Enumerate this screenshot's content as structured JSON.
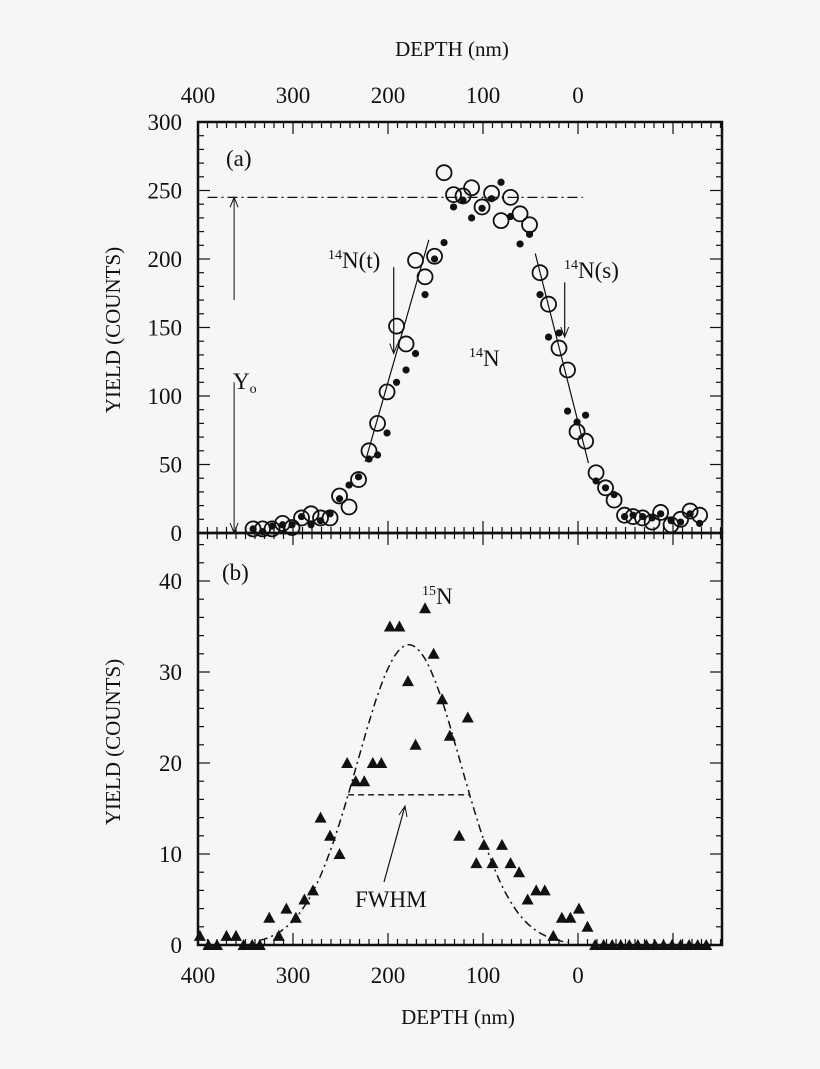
{
  "colors": {
    "ink": "#111111",
    "background": "#f6f6f6"
  },
  "chart_data": [
    {
      "panel_label": "(a)",
      "type": "scatter",
      "xlabel_top": "DEPTH (nm)",
      "ylabel": "YIELD (COUNTS)",
      "xlim": [
        400,
        -152
      ],
      "ylim": [
        0,
        300
      ],
      "xticks": [
        "400",
        "300",
        "200",
        "100",
        "0"
      ],
      "xtick_values": [
        400,
        300,
        200,
        100,
        0
      ],
      "yticks": [
        "0",
        "50",
        "100",
        "150",
        "200",
        "250",
        "300"
      ],
      "ytick_values": [
        0,
        50,
        100,
        150,
        200,
        250,
        300
      ],
      "series": [
        {
          "name": "open circles",
          "marker": "open-circle",
          "x": [
            342,
            332,
            322,
            311,
            301,
            291,
            281,
            271,
            261,
            251,
            241,
            231,
            220,
            211,
            201,
            191,
            181,
            171,
            161,
            151,
            141,
            131,
            121,
            112,
            101,
            91,
            81,
            71,
            61,
            51,
            40,
            31,
            20,
            11,
            1,
            -8,
            -19,
            -29,
            -38,
            -49,
            -58,
            -68,
            -78,
            -87,
            -98,
            -108,
            -118,
            -128
          ],
          "y": [
            3,
            3,
            3,
            7,
            4,
            11,
            14,
            11,
            11,
            27,
            19,
            39,
            60,
            80,
            103,
            151,
            138,
            199,
            187,
            202,
            263,
            247,
            246,
            252,
            238,
            248,
            228,
            245,
            233,
            225,
            190,
            167,
            135,
            119,
            74,
            67,
            44,
            33,
            24,
            13,
            12,
            11,
            8,
            15,
            6,
            10,
            16,
            13
          ]
        },
        {
          "name": "filled dots",
          "marker": "filled-dot",
          "x": [
            342,
            332,
            322,
            311,
            301,
            291,
            281,
            271,
            261,
            251,
            241,
            231,
            220,
            211,
            201,
            191,
            181,
            171,
            161,
            151,
            141,
            131,
            121,
            112,
            101,
            91,
            81,
            71,
            61,
            51,
            40,
            31,
            20,
            11,
            1,
            -8,
            -19,
            -29,
            -38,
            -49,
            -58,
            -68,
            -78,
            -87,
            -98,
            -108,
            -118,
            -128
          ],
          "y": [
            3,
            1,
            5,
            6,
            6,
            12,
            6,
            9,
            14,
            25,
            35,
            41,
            54,
            57,
            73,
            110,
            119,
            131,
            174,
            200,
            212,
            238,
            243,
            230,
            237,
            244,
            256,
            231,
            211,
            218,
            174,
            143,
            146,
            89,
            81,
            86,
            38,
            33,
            28,
            12,
            13,
            12,
            11,
            14,
            9,
            8,
            14,
            7
          ]
        }
      ],
      "reference_line": {
        "label": "Yo",
        "y": 245,
        "x_range": [
          390,
          -5
        ],
        "style": "dash-dot"
      },
      "fit_lines": [
        {
          "name": "leading edge",
          "points": [
            [
              224,
              52
            ],
            [
              157,
              214
            ]
          ]
        },
        {
          "name": "trailing edge",
          "points": [
            [
              45,
              204
            ],
            [
              -11,
              51
            ]
          ]
        }
      ],
      "annotations": [
        {
          "sup": "14",
          "text": "N(t)",
          "arrow_x": 194,
          "arrow_from": 194,
          "arrow_to": 131
        },
        {
          "sup": "14",
          "text": "N(s)",
          "arrow_x": 14,
          "arrow_from": 183,
          "arrow_to": 143
        },
        {
          "sup": "14",
          "text": "N"
        }
      ],
      "yo_label": {
        "main": "Y",
        "sub": "o"
      }
    },
    {
      "panel_label": "(b)",
      "type": "scatter",
      "xlabel": "DEPTH (nm)",
      "ylabel": "YIELD (COUNTS)",
      "xlim": [
        400,
        -152
      ],
      "ylim": [
        0,
        45
      ],
      "xticks": [
        "400",
        "300",
        "200",
        "100",
        "0"
      ],
      "xtick_values": [
        400,
        300,
        200,
        100,
        0
      ],
      "yticks": [
        "0",
        "10",
        "20",
        "30",
        "40"
      ],
      "ytick_values": [
        0,
        10,
        20,
        30,
        40
      ],
      "series": [
        {
          "name": "15N",
          "marker": "filled-triangle",
          "x": [
            398,
            389,
            380,
            370,
            360,
            352,
            343,
            335,
            325,
            315,
            307,
            297,
            288,
            279,
            271,
            261,
            251,
            243,
            234,
            225,
            216,
            207,
            198,
            188,
            179,
            171,
            161,
            152,
            143,
            135,
            125,
            116,
            107,
            99,
            90,
            80,
            71,
            62,
            53,
            44,
            35,
            26,
            17,
            8,
            -1,
            -10,
            -18,
            -27,
            -36,
            -45,
            -54,
            -63,
            -72,
            -81,
            -90,
            -99,
            -108,
            -117,
            -126,
            -135
          ],
          "y": [
            1,
            0,
            0,
            1,
            1,
            0,
            0,
            0,
            3,
            1,
            4,
            3,
            5,
            6,
            14,
            12,
            10,
            20,
            18,
            18,
            20,
            20,
            35,
            35,
            29,
            22,
            37,
            32,
            27,
            23,
            12,
            25,
            9,
            11,
            9,
            11,
            9,
            8,
            5,
            6,
            6,
            1,
            3,
            3,
            4,
            2,
            0,
            0,
            0,
            0,
            0,
            0,
            0,
            0,
            0,
            0,
            0,
            0,
            0,
            0
          ]
        }
      ],
      "gaussian_fit": {
        "peak": 33,
        "center": 178,
        "fwhm": 128,
        "x_range": [
          335,
          10
        ],
        "style": "dash-dot"
      },
      "fwhm_label": "FWHM",
      "isotope_label": {
        "sup": "15",
        "text": "N"
      }
    }
  ]
}
